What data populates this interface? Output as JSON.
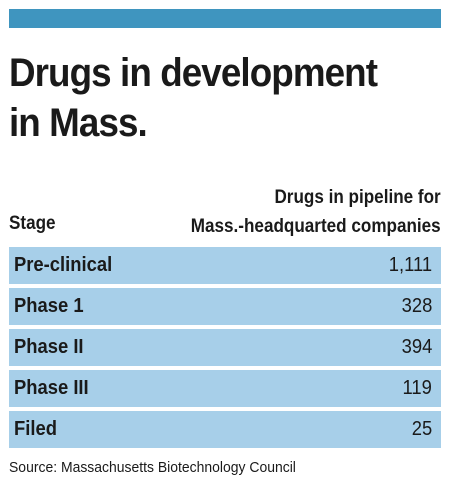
{
  "header": {
    "bar_color": "#3f95bf",
    "title_lines": [
      "Drugs in development",
      "in Mass."
    ]
  },
  "columns": {
    "stage": "Stage",
    "value_lines": [
      "Drugs in pipeline for",
      "Mass.-headquarted companies"
    ]
  },
  "colors": {
    "row_fill": "#a7cfe9"
  },
  "chart_data": {
    "type": "table",
    "title": "Drugs in development in Mass.",
    "columns": [
      "Stage",
      "Drugs in pipeline for Mass.-headquarted companies"
    ],
    "rows": [
      {
        "stage": "Pre-clinical",
        "value": 1111,
        "display": "1,111"
      },
      {
        "stage": "Phase 1",
        "value": 328,
        "display": "328"
      },
      {
        "stage": "Phase II",
        "value": 394,
        "display": "394"
      },
      {
        "stage": "Phase III",
        "value": 119,
        "display": "119"
      },
      {
        "stage": "Filed",
        "value": 25,
        "display": "25"
      }
    ]
  },
  "source": "Source: Massachusetts Biotechnology Council"
}
